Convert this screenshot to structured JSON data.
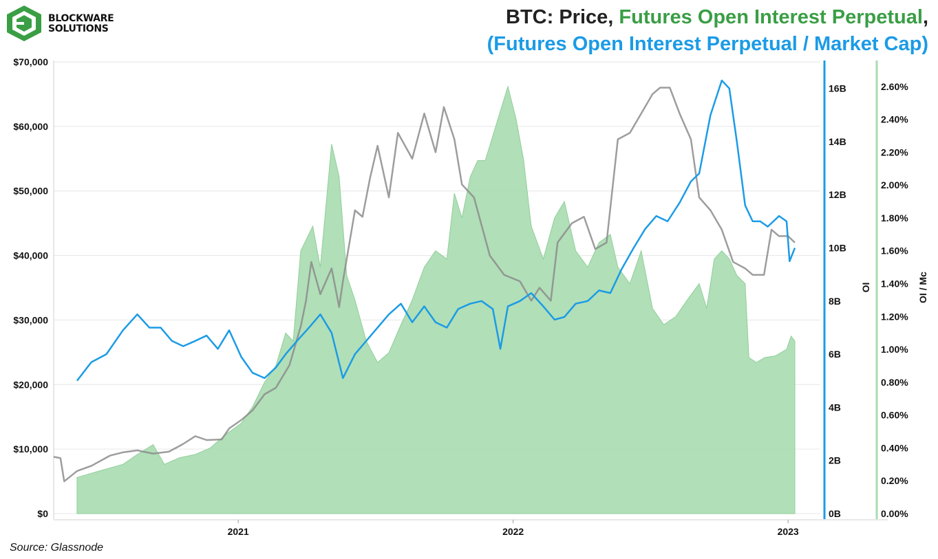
{
  "brand": {
    "line1": "BLOCKWARE",
    "line2": "SOLUTIONS"
  },
  "title": {
    "part_price": "BTC: Price, ",
    "part_oi": "Futures Open Interest Perpetual",
    "part_comma": ",",
    "line2": "(Futures Open Interest Perpetual / Market Cap)"
  },
  "source": "Source: Glassnode",
  "colors": {
    "price": "#8c8c8c",
    "oi": "#1b9be6",
    "oi_mc_fill": "#a9dbb0",
    "oi_mc_line": "#8fcf99",
    "title_green": "#3a9e45",
    "grid": "#e6e6e6"
  },
  "chart_data": {
    "type": "line",
    "x_ticks": [
      "2021",
      "2022",
      "2023"
    ],
    "x_range": [
      "2020-05-01",
      "2023-01-10"
    ],
    "axes": {
      "left": {
        "label": "",
        "ticks": [
          "$0",
          "$10,000",
          "$20,000",
          "$30,000",
          "$40,000",
          "$50,000",
          "$60,000",
          "$70,000"
        ],
        "range": [
          0,
          70000
        ]
      },
      "right_oi": {
        "label": "OI",
        "ticks": [
          "0B",
          "2B",
          "4B",
          "6B",
          "8B",
          "10B",
          "12B",
          "14B",
          "16B"
        ],
        "range": [
          0,
          17
        ]
      },
      "right_oi_mc": {
        "label": "OI / Mc",
        "ticks": [
          "0.00%",
          "0.20%",
          "0.40%",
          "0.60%",
          "0.80%",
          "1.00%",
          "1.20%",
          "1.40%",
          "1.60%",
          "1.80%",
          "2.00%",
          "2.20%",
          "2.40%",
          "2.60%"
        ],
        "range": [
          0,
          2.75
        ]
      }
    },
    "series": [
      {
        "name": "Price",
        "axis": "left",
        "type": "line",
        "points": [
          [
            "2020-05-01",
            8800
          ],
          [
            "2020-05-10",
            8600
          ],
          [
            "2020-05-15",
            5000
          ],
          [
            "2020-06-01",
            6600
          ],
          [
            "2020-06-20",
            7400
          ],
          [
            "2020-07-15",
            9000
          ],
          [
            "2020-08-01",
            9500
          ],
          [
            "2020-08-20",
            9800
          ],
          [
            "2020-09-10",
            9300
          ],
          [
            "2020-10-01",
            9600
          ],
          [
            "2020-10-20",
            10800
          ],
          [
            "2020-11-05",
            12000
          ],
          [
            "2020-11-20",
            11400
          ],
          [
            "2020-12-10",
            11500
          ],
          [
            "2020-12-20",
            13200
          ],
          [
            "2021-01-05",
            14500
          ],
          [
            "2021-01-20",
            16000
          ],
          [
            "2021-02-05",
            18500
          ],
          [
            "2021-02-20",
            19500
          ],
          [
            "2021-03-10",
            23000
          ],
          [
            "2021-03-25",
            29000
          ],
          [
            "2021-04-01",
            33000
          ],
          [
            "2021-04-08",
            39000
          ],
          [
            "2021-04-20",
            34000
          ],
          [
            "2021-05-05",
            38000
          ],
          [
            "2021-05-15",
            32000
          ],
          [
            "2021-05-20",
            36000
          ],
          [
            "2021-06-05",
            47000
          ],
          [
            "2021-06-15",
            46000
          ],
          [
            "2021-06-25",
            52000
          ],
          [
            "2021-07-05",
            57000
          ],
          [
            "2021-07-20",
            49000
          ],
          [
            "2021-08-01",
            59000
          ],
          [
            "2021-08-20",
            55000
          ],
          [
            "2021-09-05",
            62000
          ],
          [
            "2021-09-20",
            56000
          ],
          [
            "2021-10-01",
            63000
          ],
          [
            "2021-10-15",
            58000
          ],
          [
            "2021-10-25",
            51000
          ],
          [
            "2021-11-10",
            49000
          ],
          [
            "2021-12-01",
            40000
          ],
          [
            "2021-12-20",
            37000
          ],
          [
            "2022-01-10",
            36000
          ],
          [
            "2022-01-25",
            33000
          ],
          [
            "2022-02-05",
            35000
          ],
          [
            "2022-02-20",
            33000
          ],
          [
            "2022-03-01",
            42000
          ],
          [
            "2022-03-20",
            45000
          ],
          [
            "2022-04-05",
            46000
          ],
          [
            "2022-04-20",
            41000
          ],
          [
            "2022-05-05",
            42000
          ],
          [
            "2022-05-20",
            58000
          ],
          [
            "2022-06-05",
            59000
          ],
          [
            "2022-06-25",
            63000
          ],
          [
            "2022-07-05",
            65000
          ],
          [
            "2022-07-15",
            66000
          ],
          [
            "2022-07-28",
            66000
          ],
          [
            "2022-08-10",
            62000
          ],
          [
            "2022-08-25",
            58000
          ],
          [
            "2022-09-05",
            49000
          ],
          [
            "2022-09-20",
            47000
          ],
          [
            "2022-10-05",
            44000
          ],
          [
            "2022-10-20",
            39000
          ],
          [
            "2022-11-05",
            38000
          ],
          [
            "2022-11-15",
            37000
          ],
          [
            "2022-11-30",
            37000
          ],
          [
            "2022-12-10",
            44000
          ],
          [
            "2022-12-20",
            43000
          ],
          [
            "2023-01-01",
            43000
          ],
          [
            "2023-01-10",
            42000
          ]
        ]
      },
      {
        "name": "Futures Open Interest Perpetual",
        "axis": "right_oi",
        "type": "line",
        "points": [
          [
            "2020-06-01",
            5.0
          ],
          [
            "2020-06-20",
            5.7
          ],
          [
            "2020-07-10",
            6.0
          ],
          [
            "2020-08-01",
            6.9
          ],
          [
            "2020-08-20",
            7.5
          ],
          [
            "2020-09-05",
            7.0
          ],
          [
            "2020-09-20",
            7.0
          ],
          [
            "2020-10-05",
            6.5
          ],
          [
            "2020-10-20",
            6.3
          ],
          [
            "2020-11-05",
            6.5
          ],
          [
            "2020-11-20",
            6.7
          ],
          [
            "2020-12-05",
            6.2
          ],
          [
            "2020-12-20",
            6.9
          ],
          [
            "2021-01-05",
            5.9
          ],
          [
            "2021-01-20",
            5.3
          ],
          [
            "2021-02-05",
            5.1
          ],
          [
            "2021-02-20",
            5.5
          ],
          [
            "2021-03-05",
            6.0
          ],
          [
            "2021-03-20",
            6.5
          ],
          [
            "2021-04-05",
            7.0
          ],
          [
            "2021-04-20",
            7.5
          ],
          [
            "2021-05-05",
            6.8
          ],
          [
            "2021-05-20",
            5.1
          ],
          [
            "2021-06-05",
            6.0
          ],
          [
            "2021-06-20",
            6.5
          ],
          [
            "2021-07-05",
            7.0
          ],
          [
            "2021-07-20",
            7.5
          ],
          [
            "2021-08-05",
            7.9
          ],
          [
            "2021-08-20",
            7.2
          ],
          [
            "2021-09-05",
            7.8
          ],
          [
            "2021-09-20",
            7.2
          ],
          [
            "2021-10-05",
            7.0
          ],
          [
            "2021-10-20",
            7.7
          ],
          [
            "2021-11-05",
            7.9
          ],
          [
            "2021-11-20",
            8.0
          ],
          [
            "2021-12-05",
            7.7
          ],
          [
            "2021-12-15",
            6.2
          ],
          [
            "2021-12-25",
            7.8
          ],
          [
            "2022-01-10",
            8.0
          ],
          [
            "2022-01-25",
            8.3
          ],
          [
            "2022-02-10",
            7.8
          ],
          [
            "2022-02-25",
            7.3
          ],
          [
            "2022-03-10",
            7.4
          ],
          [
            "2022-03-25",
            7.9
          ],
          [
            "2022-04-10",
            8.0
          ],
          [
            "2022-04-25",
            8.4
          ],
          [
            "2022-05-10",
            8.3
          ],
          [
            "2022-05-25",
            9.2
          ],
          [
            "2022-06-10",
            10.0
          ],
          [
            "2022-06-25",
            10.7
          ],
          [
            "2022-07-10",
            11.2
          ],
          [
            "2022-07-25",
            11.0
          ],
          [
            "2022-08-10",
            11.7
          ],
          [
            "2022-08-25",
            12.5
          ],
          [
            "2022-09-05",
            12.8
          ],
          [
            "2022-09-20",
            15.0
          ],
          [
            "2022-10-05",
            16.3
          ],
          [
            "2022-10-15",
            16.0
          ],
          [
            "2022-10-25",
            14.0
          ],
          [
            "2022-11-05",
            11.6
          ],
          [
            "2022-11-15",
            11.0
          ],
          [
            "2022-11-25",
            11.0
          ],
          [
            "2022-12-05",
            10.8
          ],
          [
            "2022-12-20",
            11.2
          ],
          [
            "2022-12-30",
            11.0
          ],
          [
            "2023-01-03",
            9.5
          ],
          [
            "2023-01-10",
            10.0
          ]
        ]
      },
      {
        "name": "Futures Open Interest Perpetual / Market Cap",
        "axis": "right_oi_mc",
        "type": "area",
        "points": [
          [
            "2020-06-01",
            0.22
          ],
          [
            "2020-07-01",
            0.26
          ],
          [
            "2020-08-01",
            0.3
          ],
          [
            "2020-08-20",
            0.36
          ],
          [
            "2020-09-10",
            0.42
          ],
          [
            "2020-09-25",
            0.3
          ],
          [
            "2020-10-15",
            0.34
          ],
          [
            "2020-11-05",
            0.36
          ],
          [
            "2020-11-25",
            0.4
          ],
          [
            "2020-12-15",
            0.48
          ],
          [
            "2021-01-05",
            0.55
          ],
          [
            "2021-01-20",
            0.65
          ],
          [
            "2021-02-05",
            0.8
          ],
          [
            "2021-02-20",
            0.9
          ],
          [
            "2021-03-05",
            1.1
          ],
          [
            "2021-03-15",
            1.05
          ],
          [
            "2021-03-25",
            1.6
          ],
          [
            "2021-04-10",
            1.75
          ],
          [
            "2021-04-20",
            1.5
          ],
          [
            "2021-05-05",
            2.25
          ],
          [
            "2021-05-15",
            2.05
          ],
          [
            "2021-05-25",
            1.45
          ],
          [
            "2021-06-05",
            1.3
          ],
          [
            "2021-06-20",
            1.05
          ],
          [
            "2021-07-05",
            0.92
          ],
          [
            "2021-07-20",
            0.98
          ],
          [
            "2021-08-05",
            1.15
          ],
          [
            "2021-08-20",
            1.3
          ],
          [
            "2021-09-05",
            1.5
          ],
          [
            "2021-09-20",
            1.6
          ],
          [
            "2021-10-05",
            1.55
          ],
          [
            "2021-10-15",
            1.95
          ],
          [
            "2021-10-25",
            1.8
          ],
          [
            "2021-11-05",
            2.05
          ],
          [
            "2021-11-15",
            2.15
          ],
          [
            "2021-11-25",
            2.15
          ],
          [
            "2021-12-05",
            2.3
          ],
          [
            "2021-12-15",
            2.45
          ],
          [
            "2021-12-25",
            2.6
          ],
          [
            "2022-01-05",
            2.4
          ],
          [
            "2022-01-15",
            2.15
          ],
          [
            "2022-01-25",
            1.75
          ],
          [
            "2022-02-10",
            1.55
          ],
          [
            "2022-02-25",
            1.8
          ],
          [
            "2022-03-10",
            1.9
          ],
          [
            "2022-03-25",
            1.6
          ],
          [
            "2022-04-10",
            1.5
          ],
          [
            "2022-04-25",
            1.65
          ],
          [
            "2022-05-10",
            1.7
          ],
          [
            "2022-05-20",
            1.5
          ],
          [
            "2022-06-05",
            1.4
          ],
          [
            "2022-06-20",
            1.6
          ],
          [
            "2022-07-05",
            1.25
          ],
          [
            "2022-07-20",
            1.15
          ],
          [
            "2022-08-05",
            1.2
          ],
          [
            "2022-08-20",
            1.3
          ],
          [
            "2022-09-05",
            1.4
          ],
          [
            "2022-09-15",
            1.25
          ],
          [
            "2022-09-25",
            1.55
          ],
          [
            "2022-10-05",
            1.6
          ],
          [
            "2022-10-15",
            1.55
          ],
          [
            "2022-10-25",
            1.45
          ],
          [
            "2022-11-05",
            1.4
          ],
          [
            "2022-11-10",
            0.95
          ],
          [
            "2022-11-20",
            0.92
          ],
          [
            "2022-12-01",
            0.95
          ],
          [
            "2022-12-15",
            0.96
          ],
          [
            "2022-12-30",
            1.0
          ],
          [
            "2023-01-05",
            1.08
          ],
          [
            "2023-01-10",
            1.05
          ]
        ]
      }
    ]
  }
}
